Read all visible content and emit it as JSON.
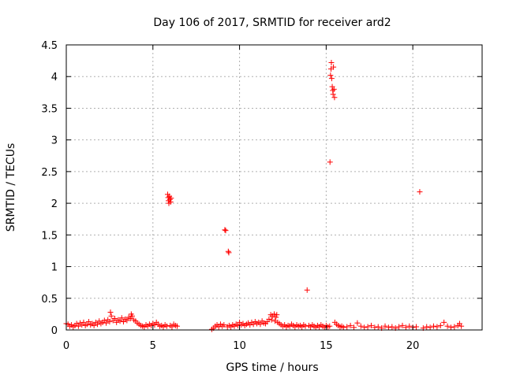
{
  "chart_data": {
    "type": "scatter",
    "title": "Day 106 of 2017, SRMTID for receiver ard2",
    "xlabel": "GPS time / hours",
    "ylabel": "SRMTID / TECUs",
    "xlim": [
      0,
      24
    ],
    "ylim": [
      0,
      4.5
    ],
    "xticks": [
      0,
      5,
      10,
      15,
      20
    ],
    "xtick_labels": [
      "0",
      "5",
      "10",
      "15",
      "20"
    ],
    "yticks": [
      0,
      0.5,
      1,
      1.5,
      2,
      2.5,
      3,
      3.5,
      4,
      4.5
    ],
    "ytick_labels": [
      "0",
      "0.5",
      "1",
      "1.5",
      "2",
      "2.5",
      "3",
      "3.5",
      "4",
      "4.5"
    ],
    "grid": true,
    "marker": "+",
    "series_color": "#ff0000",
    "series": [
      {
        "name": "SRMTID",
        "points": [
          [
            0.0,
            0.1
          ],
          [
            0.1,
            0.09
          ],
          [
            0.2,
            0.06
          ],
          [
            0.3,
            0.08
          ],
          [
            0.4,
            0.05
          ],
          [
            0.5,
            0.07
          ],
          [
            0.6,
            0.1
          ],
          [
            0.7,
            0.06
          ],
          [
            0.8,
            0.11
          ],
          [
            0.9,
            0.08
          ],
          [
            1.0,
            0.12
          ],
          [
            1.1,
            0.07
          ],
          [
            1.2,
            0.09
          ],
          [
            1.3,
            0.13
          ],
          [
            1.4,
            0.08
          ],
          [
            1.5,
            0.1
          ],
          [
            1.6,
            0.07
          ],
          [
            1.7,
            0.12
          ],
          [
            1.8,
            0.09
          ],
          [
            1.9,
            0.14
          ],
          [
            2.0,
            0.1
          ],
          [
            2.1,
            0.12
          ],
          [
            2.2,
            0.15
          ],
          [
            2.3,
            0.11
          ],
          [
            2.4,
            0.16
          ],
          [
            2.5,
            0.13
          ],
          [
            2.55,
            0.28
          ],
          [
            2.6,
            0.22
          ],
          [
            2.7,
            0.15
          ],
          [
            2.8,
            0.18
          ],
          [
            2.9,
            0.12
          ],
          [
            3.0,
            0.16
          ],
          [
            3.1,
            0.14
          ],
          [
            3.2,
            0.19
          ],
          [
            3.3,
            0.13
          ],
          [
            3.4,
            0.17
          ],
          [
            3.5,
            0.15
          ],
          [
            3.6,
            0.2
          ],
          [
            3.7,
            0.18
          ],
          [
            3.75,
            0.25
          ],
          [
            3.8,
            0.22
          ],
          [
            3.9,
            0.16
          ],
          [
            4.0,
            0.14
          ],
          [
            4.1,
            0.11
          ],
          [
            4.2,
            0.09
          ],
          [
            4.3,
            0.07
          ],
          [
            4.4,
            0.06
          ],
          [
            4.5,
            0.05
          ],
          [
            4.6,
            0.08
          ],
          [
            4.7,
            0.06
          ],
          [
            4.8,
            0.09
          ],
          [
            4.9,
            0.07
          ],
          [
            5.0,
            0.1
          ],
          [
            5.1,
            0.08
          ],
          [
            5.2,
            0.12
          ],
          [
            5.3,
            0.09
          ],
          [
            5.4,
            0.06
          ],
          [
            5.5,
            0.07
          ],
          [
            5.6,
            0.05
          ],
          [
            5.7,
            0.08
          ],
          [
            5.8,
            0.06
          ],
          [
            5.85,
            2.14
          ],
          [
            5.88,
            2.09
          ],
          [
            5.9,
            2.04
          ],
          [
            5.92,
            2.0
          ],
          [
            5.95,
            2.11
          ],
          [
            5.98,
            2.06
          ],
          [
            6.02,
            2.02
          ],
          [
            6.05,
            2.08
          ],
          [
            6.0,
            0.07
          ],
          [
            6.1,
            0.05
          ],
          [
            6.2,
            0.09
          ],
          [
            6.3,
            0.07
          ],
          [
            6.4,
            0.06
          ],
          [
            8.4,
            0.01
          ],
          [
            8.5,
            0.03
          ],
          [
            8.6,
            0.06
          ],
          [
            8.7,
            0.08
          ],
          [
            8.8,
            0.05
          ],
          [
            8.9,
            0.09
          ],
          [
            9.0,
            0.06
          ],
          [
            9.1,
            0.08
          ],
          [
            9.15,
            1.58
          ],
          [
            9.2,
            1.57
          ],
          [
            9.3,
            0.05
          ],
          [
            9.35,
            1.24
          ],
          [
            9.38,
            1.22
          ],
          [
            9.4,
            0.07
          ],
          [
            9.5,
            0.05
          ],
          [
            9.6,
            0.08
          ],
          [
            9.7,
            0.06
          ],
          [
            9.8,
            0.09
          ],
          [
            9.9,
            0.07
          ],
          [
            10.0,
            0.12
          ],
          [
            10.1,
            0.08
          ],
          [
            10.2,
            0.1
          ],
          [
            10.3,
            0.07
          ],
          [
            10.4,
            0.09
          ],
          [
            10.5,
            0.11
          ],
          [
            10.6,
            0.08
          ],
          [
            10.7,
            0.12
          ],
          [
            10.8,
            0.09
          ],
          [
            10.9,
            0.13
          ],
          [
            11.0,
            0.1
          ],
          [
            11.1,
            0.12
          ],
          [
            11.2,
            0.09
          ],
          [
            11.3,
            0.14
          ],
          [
            11.4,
            0.11
          ],
          [
            11.5,
            0.1
          ],
          [
            11.6,
            0.13
          ],
          [
            11.7,
            0.17
          ],
          [
            11.8,
            0.24
          ],
          [
            11.85,
            0.16
          ],
          [
            11.9,
            0.22
          ],
          [
            12.0,
            0.25
          ],
          [
            12.05,
            0.14
          ],
          [
            12.1,
            0.2
          ],
          [
            12.15,
            0.24
          ],
          [
            12.2,
            0.12
          ],
          [
            12.3,
            0.1
          ],
          [
            12.4,
            0.08
          ],
          [
            12.5,
            0.06
          ],
          [
            12.6,
            0.08
          ],
          [
            12.7,
            0.05
          ],
          [
            12.8,
            0.07
          ],
          [
            12.9,
            0.06
          ],
          [
            13.0,
            0.09
          ],
          [
            13.1,
            0.07
          ],
          [
            13.2,
            0.05
          ],
          [
            13.3,
            0.08
          ],
          [
            13.4,
            0.06
          ],
          [
            13.5,
            0.07
          ],
          [
            13.6,
            0.05
          ],
          [
            13.7,
            0.08
          ],
          [
            13.8,
            0.06
          ],
          [
            13.9,
            0.63
          ],
          [
            14.0,
            0.07
          ],
          [
            14.1,
            0.05
          ],
          [
            14.2,
            0.08
          ],
          [
            14.3,
            0.06
          ],
          [
            14.4,
            0.04
          ],
          [
            14.5,
            0.07
          ],
          [
            14.6,
            0.05
          ],
          [
            14.7,
            0.08
          ],
          [
            14.8,
            0.06
          ],
          [
            14.9,
            0.04
          ],
          [
            15.0,
            0.07
          ],
          [
            15.1,
            0.05
          ],
          [
            15.2,
            0.06
          ],
          [
            15.22,
            2.65
          ],
          [
            15.25,
            4.02
          ],
          [
            15.28,
            4.12
          ],
          [
            15.3,
            4.22
          ],
          [
            15.32,
            3.97
          ],
          [
            15.35,
            3.84
          ],
          [
            15.38,
            3.78
          ],
          [
            15.4,
            3.72
          ],
          [
            15.42,
            4.15
          ],
          [
            15.45,
            3.8
          ],
          [
            15.48,
            3.67
          ],
          [
            15.5,
            0.12
          ],
          [
            15.6,
            0.09
          ],
          [
            15.7,
            0.07
          ],
          [
            15.8,
            0.05
          ],
          [
            15.9,
            0.06
          ],
          [
            16.0,
            0.04
          ],
          [
            16.2,
            0.05
          ],
          [
            16.4,
            0.07
          ],
          [
            16.6,
            0.04
          ],
          [
            16.8,
            0.11
          ],
          [
            17.0,
            0.06
          ],
          [
            17.2,
            0.04
          ],
          [
            17.4,
            0.05
          ],
          [
            17.6,
            0.07
          ],
          [
            17.8,
            0.04
          ],
          [
            18.0,
            0.05
          ],
          [
            18.2,
            0.03
          ],
          [
            18.4,
            0.06
          ],
          [
            18.6,
            0.04
          ],
          [
            18.8,
            0.05
          ],
          [
            19.0,
            0.03
          ],
          [
            19.2,
            0.05
          ],
          [
            19.4,
            0.07
          ],
          [
            19.6,
            0.04
          ],
          [
            19.8,
            0.06
          ],
          [
            20.0,
            0.04
          ],
          [
            20.2,
            0.05
          ],
          [
            20.4,
            2.18
          ],
          [
            20.6,
            0.03
          ],
          [
            20.8,
            0.05
          ],
          [
            21.0,
            0.04
          ],
          [
            21.2,
            0.06
          ],
          [
            21.4,
            0.05
          ],
          [
            21.6,
            0.07
          ],
          [
            21.8,
            0.12
          ],
          [
            22.0,
            0.06
          ],
          [
            22.2,
            0.04
          ],
          [
            22.4,
            0.05
          ],
          [
            22.6,
            0.07
          ],
          [
            22.7,
            0.1
          ],
          [
            22.8,
            0.06
          ]
        ]
      }
    ]
  }
}
